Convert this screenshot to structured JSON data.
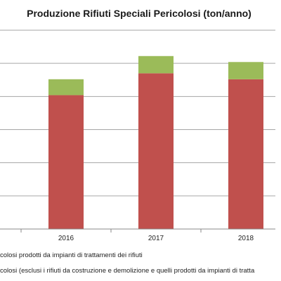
{
  "chart_data": {
    "type": "bar",
    "stacked": true,
    "title": "Produzione Rifiuti Speciali Pericolosi (ton/anno)",
    "categories": [
      "2016",
      "2017",
      "2018"
    ],
    "series": [
      {
        "name": "colosi (esclusi i rifiuti da costruzione e demolizione e quelli prodotti da impianti di tratta",
        "color": "#c0504d",
        "values": [
          202,
          235,
          226
        ]
      },
      {
        "name": "colosi prodotti da impianti di trattamenti dei rifiuti",
        "color": "#9bbb59",
        "values": [
          24,
          26,
          26
        ]
      }
    ],
    "ylim": [
      0,
      300
    ],
    "grid": true,
    "legend_position": "bottom"
  }
}
